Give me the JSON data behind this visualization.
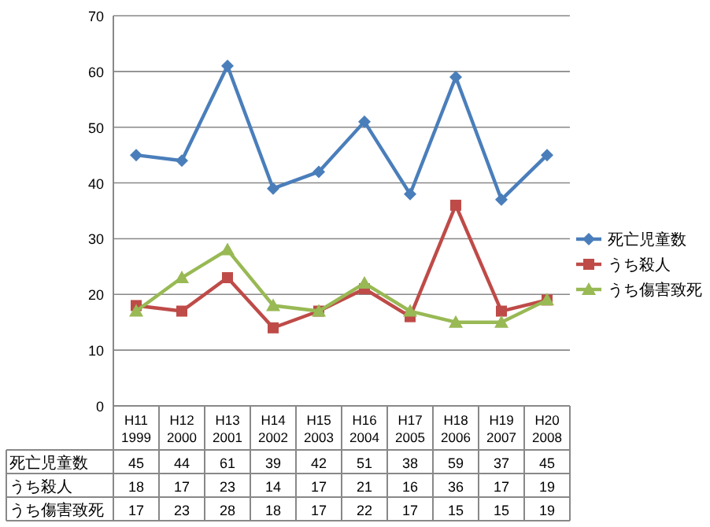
{
  "chart_data": {
    "type": "line",
    "categories": [
      "H11\n1999",
      "H12\n2000",
      "H13\n2001",
      "H14\n2002",
      "H15\n2003",
      "H16\n2004",
      "H17\n2005",
      "H18\n2006",
      "H19\n2007",
      "H20\n2008"
    ],
    "series": [
      {
        "name": "死亡児童数",
        "color": "#4a7ebb",
        "marker": "diamond",
        "values": [
          45,
          44,
          61,
          39,
          42,
          51,
          38,
          59,
          37,
          45
        ]
      },
      {
        "name": "うち殺人",
        "color": "#be4b48",
        "marker": "square",
        "values": [
          18,
          17,
          23,
          14,
          17,
          21,
          16,
          36,
          17,
          19
        ]
      },
      {
        "name": "うち傷害致死",
        "color": "#98b954",
        "marker": "triangle",
        "values": [
          17,
          23,
          28,
          18,
          17,
          22,
          17,
          15,
          15,
          19
        ]
      }
    ],
    "ylim": [
      0,
      70
    ],
    "yticks": [
      0,
      10,
      20,
      30,
      40,
      50,
      60,
      70
    ],
    "grid": "y",
    "legend": "right",
    "data_labels": true
  }
}
